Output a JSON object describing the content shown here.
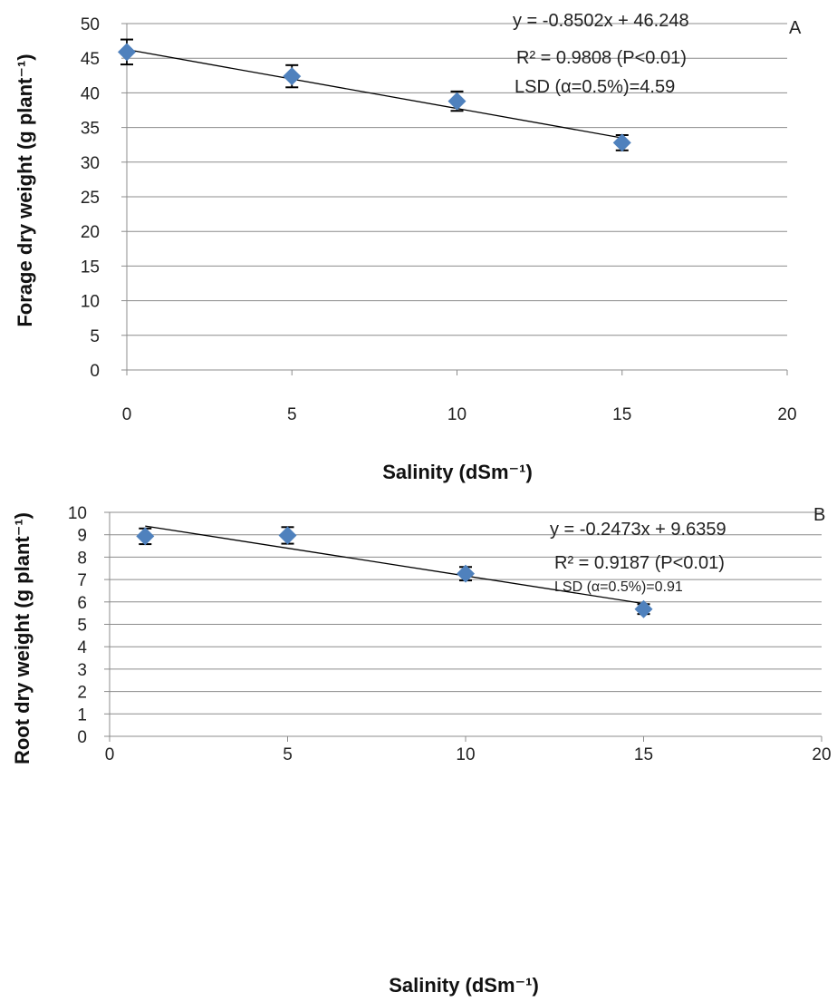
{
  "chart_data": [
    {
      "type": "scatter",
      "panel_label": "A",
      "xlabel": "Salinity (dSm⁻¹)",
      "ylabel": "Forage dry weight (g  plant⁻¹)",
      "xlim": [
        0,
        20
      ],
      "ylim": [
        0,
        50
      ],
      "xticks": [
        0,
        5,
        10,
        15,
        20
      ],
      "yticks": [
        0,
        5,
        10,
        15,
        20,
        25,
        30,
        35,
        40,
        45,
        50
      ],
      "grid": true,
      "points": [
        {
          "x": 0,
          "y": 45.9,
          "err": 1.8
        },
        {
          "x": 5,
          "y": 42.4,
          "err": 1.6
        },
        {
          "x": 10,
          "y": 38.8,
          "err": 1.4
        },
        {
          "x": 15,
          "y": 32.8,
          "err": 1.1
        }
      ],
      "trendline": {
        "slope": -0.8502,
        "intercept": 46.248,
        "x_range": [
          0,
          15
        ]
      },
      "annotations": {
        "equation": "y = -0.8502x + 46.248",
        "r2": "R² = 0.9808 (P<0.01)",
        "lsd": "LSD (α=0.5%)=4.59"
      },
      "colors": {
        "marker": "#4f81bd",
        "line": "#000000",
        "grid": "#8c8c8c"
      }
    },
    {
      "type": "scatter",
      "panel_label": "B",
      "xlabel": "Salinity (dSm⁻¹)",
      "ylabel": "Root dry weight (g plant⁻¹)",
      "xlim": [
        0,
        20
      ],
      "ylim": [
        0,
        10
      ],
      "xticks": [
        0,
        5,
        10,
        15,
        20
      ],
      "yticks": [
        0,
        1,
        2,
        3,
        4,
        5,
        6,
        7,
        8,
        9,
        10
      ],
      "grid": true,
      "points": [
        {
          "x": 1,
          "y": 8.93,
          "err": 0.35
        },
        {
          "x": 5,
          "y": 8.97,
          "err": 0.37
        },
        {
          "x": 10,
          "y": 7.26,
          "err": 0.3
        },
        {
          "x": 15,
          "y": 5.68,
          "err": 0.22
        }
      ],
      "trendline": {
        "slope": -0.2473,
        "intercept": 9.6359,
        "x_range": [
          1,
          15
        ]
      },
      "annotations": {
        "equation": "y = -0.2473x + 9.6359",
        "r2": "R² = 0.9187 (P<0.01)",
        "lsd": "LSD (α=0.5%)=0.91"
      },
      "colors": {
        "marker": "#4f81bd",
        "line": "#000000",
        "grid": "#8c8c8c"
      }
    }
  ]
}
